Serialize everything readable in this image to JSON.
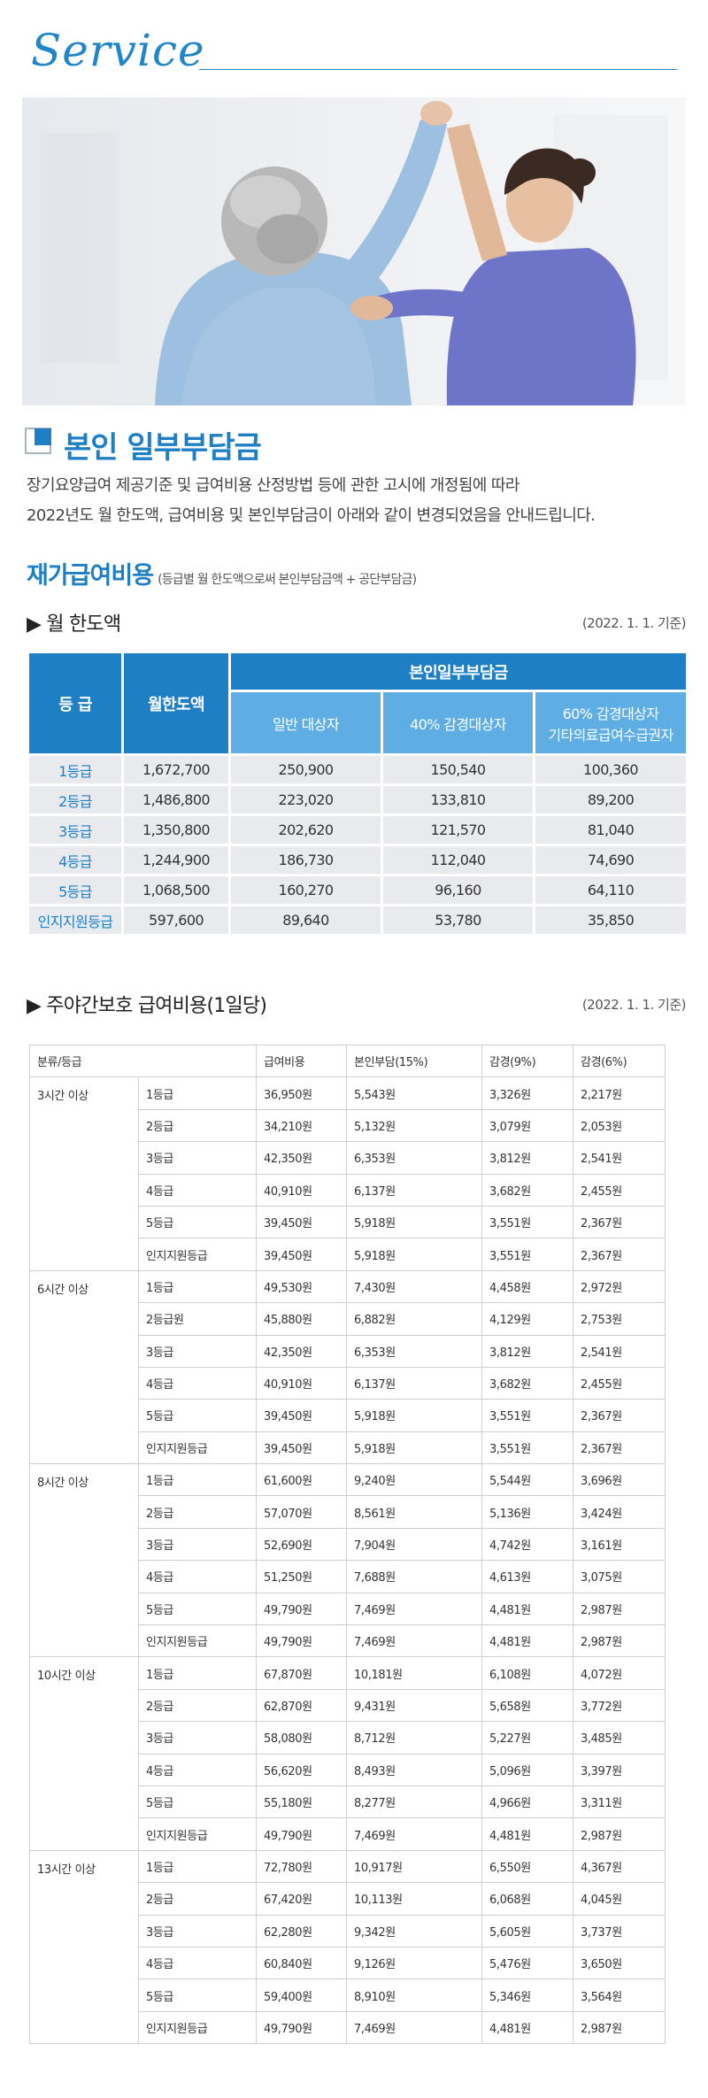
{
  "header": {
    "title": "Service"
  },
  "section": {
    "title": "본인 일부부담금",
    "intro": [
      "장기요양급여 제공기준 및 급여비용 산정방법 등에 관한 고시에 개정됨에 따라",
      "2022년도 월 한도액, 급여비용 및 본인부담금이 아래와 같이 변경되었음을 안내드립니다."
    ],
    "subtitle": "재가급여비용",
    "subtitle_note": "(등급별 월 한도액으로써 본인부담금액 + 공단부담금)"
  },
  "monthly": {
    "title": "▶ 월 한도액",
    "date": "(2022. 1. 1. 기준)",
    "headers": {
      "grade": "등 급",
      "limit": "월한도액",
      "self_pay": "본인일부부담금",
      "general": "일반 대상자",
      "reduced40": "40% 감경대상자",
      "reduced60_line1": "60% 감경대상자",
      "reduced60_line2": "기타의료급여수급권자"
    },
    "rows": [
      [
        "1등급",
        "1,672,700",
        "250,900",
        "150,540",
        "100,360"
      ],
      [
        "2등급",
        "1,486,800",
        "223,020",
        "133,810",
        "89,200"
      ],
      [
        "3등급",
        "1,350,800",
        "202,620",
        "121,570",
        "81,040"
      ],
      [
        "4등급",
        "1,244,900",
        "186,730",
        "112,040",
        "74,690"
      ],
      [
        "5등급",
        "1,068,500",
        "160,270",
        "96,160",
        "64,110"
      ],
      [
        "인지지원등급",
        "597,600",
        "89,640",
        "53,780",
        "35,850"
      ]
    ]
  },
  "daycare": {
    "title": "▶ 주야간보호 급여비용(1일당)",
    "date": "(2022. 1. 1. 기준)",
    "headers": [
      "분류/등급",
      "급여비용",
      "본인부담(15%)",
      "감경(9%)",
      "감경(6%)"
    ],
    "groups": [
      {
        "label": "3시간 이상",
        "rows": [
          [
            "1등급",
            "36,950원",
            "5,543원",
            "3,326원",
            "2,217원"
          ],
          [
            "2등급",
            "34,210원",
            "5,132원",
            "3,079원",
            "2,053원"
          ],
          [
            "3등급",
            "42,350원",
            "6,353원",
            "3,812원",
            "2,541원"
          ],
          [
            "4등급",
            "40,910원",
            "6,137원",
            "3,682원",
            "2,455원"
          ],
          [
            "5등급",
            "39,450원",
            "5,918원",
            "3,551원",
            "2,367원"
          ],
          [
            "인지지원등급",
            "39,450원",
            "5,918원",
            "3,551원",
            "2,367원"
          ]
        ]
      },
      {
        "label": "6시간 이상",
        "rows": [
          [
            "1등급",
            "49,530원",
            "7,430원",
            "4,458원",
            "2,972원"
          ],
          [
            "2등급원",
            "45,880원",
            "6,882원",
            "4,129원",
            "2,753원"
          ],
          [
            "3등급",
            "42,350원",
            "6,353원",
            "3,812원",
            "2,541원"
          ],
          [
            "4등급",
            "40,910원",
            "6,137원",
            "3,682원",
            "2,455원"
          ],
          [
            "5등급",
            "39,450원",
            "5,918원",
            "3,551원",
            "2,367원"
          ],
          [
            "인지지원등급",
            "39,450원",
            "5,918원",
            "3,551원",
            "2,367원"
          ]
        ]
      },
      {
        "label": "8시간 이상",
        "rows": [
          [
            "1등급",
            "61,600원",
            "9,240원",
            "5,544원",
            "3,696원"
          ],
          [
            "2등급",
            "57,070원",
            "8,561원",
            "5,136원",
            "3,424원"
          ],
          [
            "3등급",
            "52,690원",
            "7,904원",
            "4,742원",
            "3,161원"
          ],
          [
            "4등급",
            "51,250원",
            "7,688원",
            "4,613원",
            "3,075원"
          ],
          [
            "5등급",
            "49,790원",
            "7,469원",
            "4,481원",
            "2,987원"
          ],
          [
            "인지지원등급",
            "49,790원",
            "7,469원",
            "4,481원",
            "2,987원"
          ]
        ]
      },
      {
        "label": "10시간 이상",
        "rows": [
          [
            "1등급",
            "67,870원",
            "10,181원",
            "6,108원",
            "4,072원"
          ],
          [
            "2등급",
            "62,870원",
            "9,431원",
            "5,658원",
            "3,772원"
          ],
          [
            "3등급",
            "58,080원",
            "8,712원",
            "5,227원",
            "3,485원"
          ],
          [
            "4등급",
            "56,620원",
            "8,493원",
            "5,096원",
            "3,397원"
          ],
          [
            "5등급",
            "55,180원",
            "8,277원",
            "4,966원",
            "3,311원"
          ],
          [
            "인지지원등급",
            "49,790원",
            "7,469원",
            "4,481원",
            "2,987원"
          ]
        ]
      },
      {
        "label": "13시간 이상",
        "rows": [
          [
            "1등급",
            "72,780원",
            "10,917원",
            "6,550원",
            "4,367원"
          ],
          [
            "2등급",
            "67,420원",
            "10,113원",
            "6,068원",
            "4,045원"
          ],
          [
            "3등급",
            "62,280원",
            "9,342원",
            "5,605원",
            "3,737원"
          ],
          [
            "4등급",
            "60,840원",
            "9,126원",
            "5,476원",
            "3,650원"
          ],
          [
            "5등급",
            "59,400원",
            "8,910원",
            "5,346원",
            "3,564원"
          ],
          [
            "인지지원등급",
            "49,790원",
            "7,469원",
            "4,481원",
            "2,987원"
          ]
        ]
      }
    ]
  }
}
